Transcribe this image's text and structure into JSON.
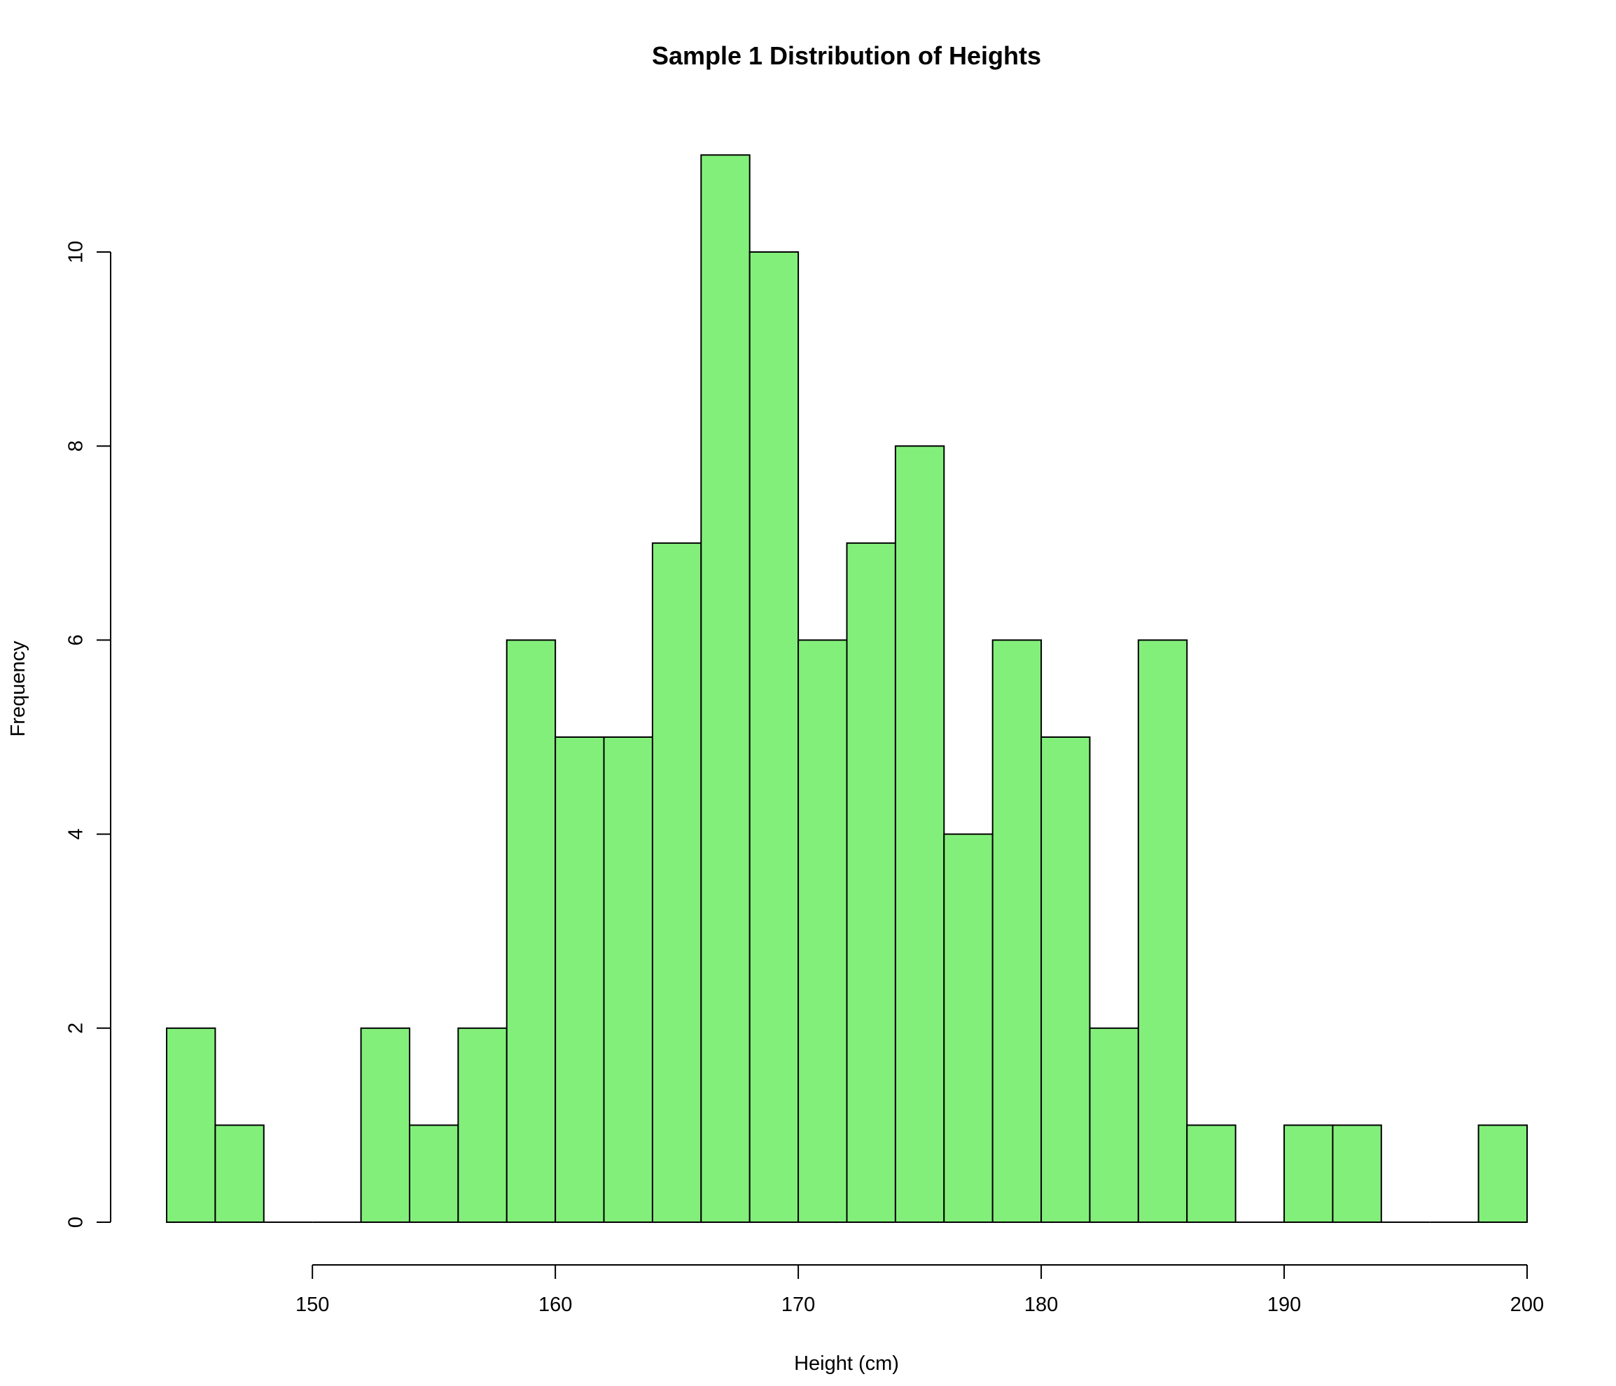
{
  "chart_data": {
    "type": "bar",
    "subtype": "histogram",
    "title": "Sample 1 Distribution of Heights",
    "xlabel": "Height (cm)",
    "ylabel": "Frequency",
    "bin_width": 2,
    "bins": [
      {
        "start": 144,
        "end": 146,
        "count": 2
      },
      {
        "start": 146,
        "end": 148,
        "count": 1
      },
      {
        "start": 148,
        "end": 150,
        "count": 0
      },
      {
        "start": 150,
        "end": 152,
        "count": 0
      },
      {
        "start": 152,
        "end": 154,
        "count": 2
      },
      {
        "start": 154,
        "end": 156,
        "count": 1
      },
      {
        "start": 156,
        "end": 158,
        "count": 2
      },
      {
        "start": 158,
        "end": 160,
        "count": 6
      },
      {
        "start": 160,
        "end": 162,
        "count": 5
      },
      {
        "start": 162,
        "end": 164,
        "count": 5
      },
      {
        "start": 164,
        "end": 166,
        "count": 7
      },
      {
        "start": 166,
        "end": 168,
        "count": 11
      },
      {
        "start": 168,
        "end": 170,
        "count": 10
      },
      {
        "start": 170,
        "end": 172,
        "count": 6
      },
      {
        "start": 172,
        "end": 174,
        "count": 7
      },
      {
        "start": 174,
        "end": 176,
        "count": 8
      },
      {
        "start": 176,
        "end": 178,
        "count": 4
      },
      {
        "start": 178,
        "end": 180,
        "count": 6
      },
      {
        "start": 180,
        "end": 182,
        "count": 5
      },
      {
        "start": 182,
        "end": 184,
        "count": 2
      },
      {
        "start": 184,
        "end": 186,
        "count": 6
      },
      {
        "start": 186,
        "end": 188,
        "count": 1
      },
      {
        "start": 188,
        "end": 190,
        "count": 0
      },
      {
        "start": 190,
        "end": 192,
        "count": 1
      },
      {
        "start": 192,
        "end": 194,
        "count": 1
      },
      {
        "start": 194,
        "end": 196,
        "count": 0
      },
      {
        "start": 196,
        "end": 198,
        "count": 0
      },
      {
        "start": 198,
        "end": 200,
        "count": 1
      }
    ],
    "xlim": [
      144,
      200
    ],
    "ylim": [
      0,
      11
    ],
    "x_ticks": [
      150,
      160,
      170,
      180,
      190,
      200
    ],
    "y_ticks": [
      0,
      2,
      4,
      6,
      8,
      10
    ],
    "bar_color": "#83ef7b",
    "edge_color": "#000000",
    "grid": false,
    "legend": "none"
  }
}
